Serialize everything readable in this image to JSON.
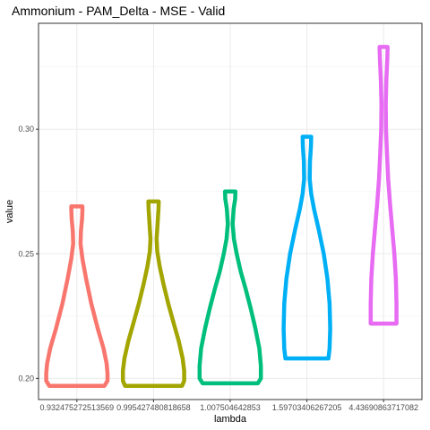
{
  "chart_data": {
    "type": "violin",
    "title": "Ammonium - PAM_Delta - MSE - Valid",
    "xlabel": "lambda",
    "ylabel": "value",
    "ylim": [
      0.1915,
      0.3425
    ],
    "yticks": [
      0.2,
      0.25,
      0.3
    ],
    "ytick_labels": [
      "0.20",
      "0.25",
      "0.30"
    ],
    "grid": true,
    "legend": "none",
    "categories": [
      "0.932475272513569",
      "0.995427480818658",
      "1.007504642853",
      "1.59703406267205",
      "4.43690863717082"
    ],
    "series": [
      {
        "name": "0.932475272513569",
        "color": "#F8766D",
        "min": 0.197,
        "max": 0.269,
        "profile": [
          [
            0.197,
            0.9
          ],
          [
            0.199,
            1.0
          ],
          [
            0.202,
            1.0
          ],
          [
            0.206,
            0.97
          ],
          [
            0.212,
            0.87
          ],
          [
            0.22,
            0.68
          ],
          [
            0.23,
            0.47
          ],
          [
            0.24,
            0.3
          ],
          [
            0.248,
            0.18
          ],
          [
            0.254,
            0.12
          ],
          [
            0.259,
            0.13
          ],
          [
            0.264,
            0.17
          ],
          [
            0.2675,
            0.18
          ],
          [
            0.269,
            0.18
          ]
        ]
      },
      {
        "name": "0.995427480818658",
        "color": "#A3A500",
        "min": 0.197,
        "max": 0.271,
        "profile": [
          [
            0.197,
            0.93
          ],
          [
            0.199,
            1.0
          ],
          [
            0.203,
            1.0
          ],
          [
            0.208,
            0.95
          ],
          [
            0.215,
            0.82
          ],
          [
            0.222,
            0.66
          ],
          [
            0.23,
            0.48
          ],
          [
            0.238,
            0.32
          ],
          [
            0.245,
            0.2
          ],
          [
            0.251,
            0.12
          ],
          [
            0.256,
            0.1
          ],
          [
            0.262,
            0.13
          ],
          [
            0.268,
            0.16
          ],
          [
            0.271,
            0.17
          ]
        ]
      },
      {
        "name": "1.007504642853",
        "color": "#00BF7D",
        "min": 0.198,
        "max": 0.275,
        "profile": [
          [
            0.198,
            0.9
          ],
          [
            0.2,
            1.0
          ],
          [
            0.205,
            1.0
          ],
          [
            0.212,
            0.95
          ],
          [
            0.22,
            0.82
          ],
          [
            0.228,
            0.67
          ],
          [
            0.236,
            0.5
          ],
          [
            0.243,
            0.34
          ],
          [
            0.25,
            0.21
          ],
          [
            0.256,
            0.12
          ],
          [
            0.262,
            0.08
          ],
          [
            0.268,
            0.11
          ],
          [
            0.272,
            0.16
          ],
          [
            0.275,
            0.17
          ]
        ]
      },
      {
        "name": "1.59703406267205",
        "color": "#00B0F6",
        "min": 0.208,
        "max": 0.297,
        "profile": [
          [
            0.208,
            0.7
          ],
          [
            0.212,
            0.74
          ],
          [
            0.22,
            0.76
          ],
          [
            0.23,
            0.74
          ],
          [
            0.24,
            0.67
          ],
          [
            0.25,
            0.55
          ],
          [
            0.26,
            0.38
          ],
          [
            0.268,
            0.23
          ],
          [
            0.274,
            0.14
          ],
          [
            0.28,
            0.09
          ],
          [
            0.287,
            0.1
          ],
          [
            0.293,
            0.13
          ],
          [
            0.297,
            0.14
          ]
        ]
      },
      {
        "name": "4.43690863717082",
        "color": "#E76BF3",
        "min": 0.222,
        "max": 0.333,
        "profile": [
          [
            0.222,
            0.42
          ],
          [
            0.23,
            0.42
          ],
          [
            0.24,
            0.4
          ],
          [
            0.25,
            0.35
          ],
          [
            0.26,
            0.28
          ],
          [
            0.27,
            0.21
          ],
          [
            0.28,
            0.15
          ],
          [
            0.29,
            0.11
          ],
          [
            0.3,
            0.08
          ],
          [
            0.31,
            0.07
          ],
          [
            0.32,
            0.09
          ],
          [
            0.328,
            0.12
          ],
          [
            0.333,
            0.13
          ]
        ]
      }
    ]
  }
}
